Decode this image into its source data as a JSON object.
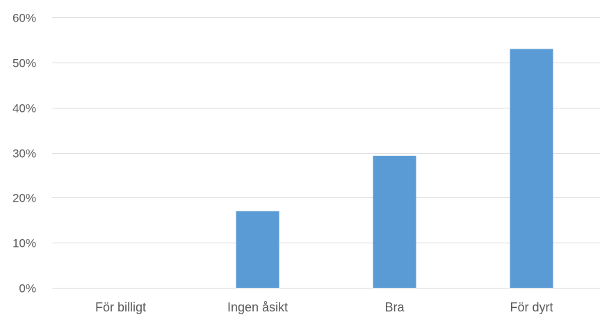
{
  "chart_data": {
    "type": "bar",
    "categories": [
      "För billigt",
      "Ingen åsikt",
      "Bra",
      "För dyrt"
    ],
    "values": [
      0,
      17,
      29.3,
      53
    ],
    "ylim": [
      0,
      60
    ],
    "y_ticks": [
      0,
      10,
      20,
      30,
      40,
      50,
      60
    ],
    "y_tick_labels": [
      "0%",
      "10%",
      "20%",
      "30%",
      "40%",
      "50%",
      "60%"
    ],
    "title": "",
    "xlabel": "",
    "ylabel": "",
    "grid": true,
    "legend": "none",
    "bar_color": "#5B9BD5",
    "gridline_color": "#D9D9D9",
    "text_color": "#595959"
  }
}
